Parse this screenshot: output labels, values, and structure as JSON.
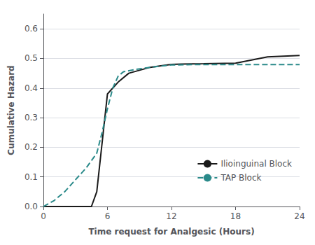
{
  "chart_data": {
    "type": "line",
    "xlabel": "Time request for Analgesic (Hours)",
    "ylabel": "Cumulative Hazard",
    "series": [
      {
        "name": "Ilioinguinal Block",
        "color": "#1a1a1a",
        "line_style": "solid",
        "x": [
          0,
          4.5,
          5.0,
          5.0,
          6.0,
          7.0,
          8.0,
          9.0,
          10.0,
          11.0,
          12.0,
          13.0,
          15.0,
          18.0,
          21.0,
          24.0
        ],
        "values": [
          0.0,
          0.0,
          0.05,
          0.05,
          0.38,
          0.42,
          0.45,
          0.46,
          0.47,
          0.475,
          0.48,
          0.481,
          0.482,
          0.484,
          0.505,
          0.51
        ]
      },
      {
        "name": "TAP Block",
        "color": "#2a8a8a",
        "line_style": "dashed",
        "x": [
          0,
          1.0,
          2.0,
          3.0,
          4.0,
          5.0,
          5.5,
          6.0,
          6.5,
          7.0,
          7.5,
          8.5,
          10.0,
          11.0,
          12.0,
          14.0,
          18.0,
          24.0
        ],
        "values": [
          0.0,
          0.02,
          0.05,
          0.09,
          0.13,
          0.18,
          0.25,
          0.33,
          0.4,
          0.44,
          0.455,
          0.462,
          0.47,
          0.474,
          0.478,
          0.479,
          0.479,
          0.479
        ]
      }
    ],
    "xlim": [
      0,
      24
    ],
    "xticks": [
      0,
      6,
      12,
      18,
      24
    ],
    "ylim": [
      0.0,
      0.65
    ],
    "yticks": [
      {
        "value": 0.0,
        "label": "0.0"
      },
      0.1,
      0.2,
      0.3,
      0.4,
      0.5,
      0.6
    ],
    "grid": "y",
    "legend": "lower right"
  }
}
